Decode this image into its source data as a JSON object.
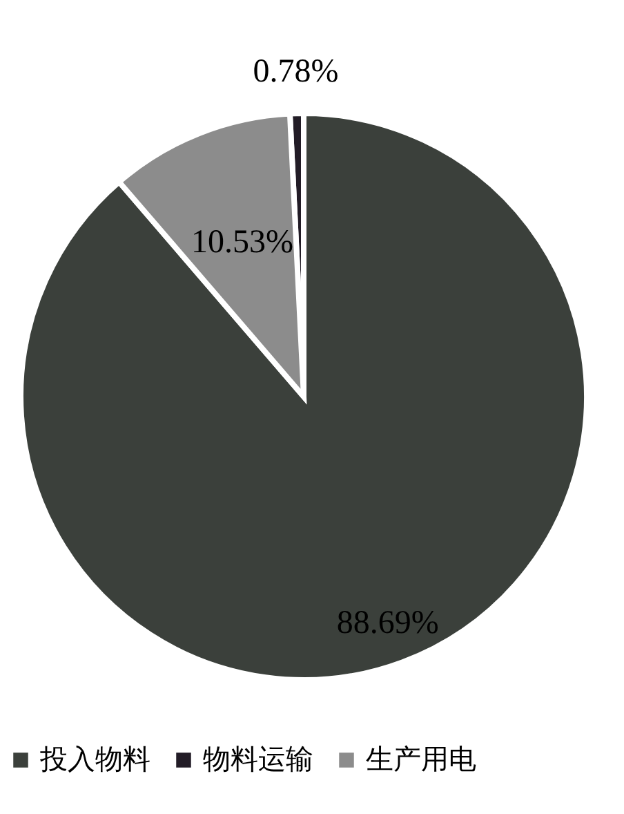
{
  "chart_data": {
    "type": "pie",
    "categories": [
      "投入物料",
      "物料运输",
      "生产用电"
    ],
    "values": [
      88.69,
      0.78,
      10.53
    ],
    "colors": [
      "#3b403b",
      "#221c26",
      "#8c8c8c"
    ],
    "value_labels": [
      "88.69%",
      "0.78%",
      "10.53%"
    ],
    "legend": "bottom"
  }
}
